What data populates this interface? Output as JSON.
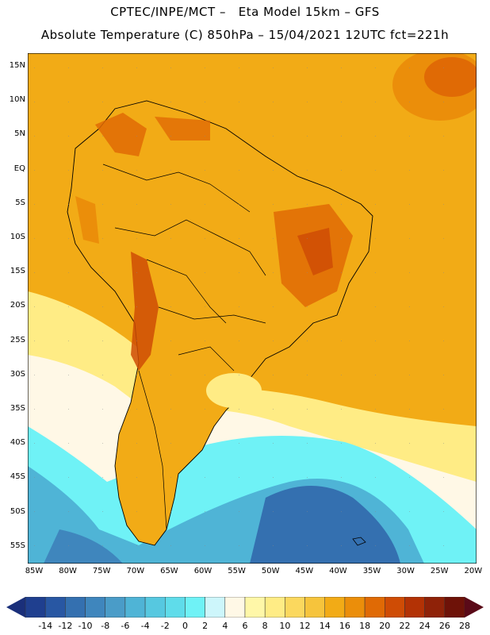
{
  "header": {
    "line1": "CPTEC/INPE/MCT –   Eta Model 15km – GFS",
    "line2": "Absolute Temperature (C) 850hPa – 15/04/2021 12UTC fct=221h"
  },
  "lat_labels": [
    "15N",
    "10N",
    "5N",
    "EQ",
    "5S",
    "10S",
    "15S",
    "20S",
    "25S",
    "30S",
    "35S",
    "40S",
    "45S",
    "50S",
    "55S"
  ],
  "lon_labels": [
    "85W",
    "80W",
    "75W",
    "70W",
    "65W",
    "60W",
    "55W",
    "50W",
    "45W",
    "40W",
    "35W",
    "30W",
    "25W",
    "20W"
  ],
  "colorbar": {
    "labels": [
      "-14",
      "-12",
      "-10",
      "-8",
      "-6",
      "-4",
      "-2",
      "0",
      "2",
      "4",
      "6",
      "8",
      "10",
      "12",
      "14",
      "16",
      "18",
      "20",
      "22",
      "24",
      "26",
      "28"
    ],
    "colors": [
      "#1f3f8f",
      "#2857a3",
      "#3470b0",
      "#3f86bd",
      "#4a9cc8",
      "#4fb4d6",
      "#56c8e0",
      "#5fdcea",
      "#6ff2f6",
      "#cdf6fb",
      "#fff8e6",
      "#fff7a8",
      "#ffec85",
      "#fbd85e",
      "#f6c43c",
      "#f2ab16",
      "#eb8e0a",
      "#e06a05",
      "#cf4c05",
      "#b33205",
      "#8f2208",
      "#6e1208"
    ],
    "low_cap_color": "#1a2f7a",
    "high_cap_color": "#5a0a18"
  }
}
